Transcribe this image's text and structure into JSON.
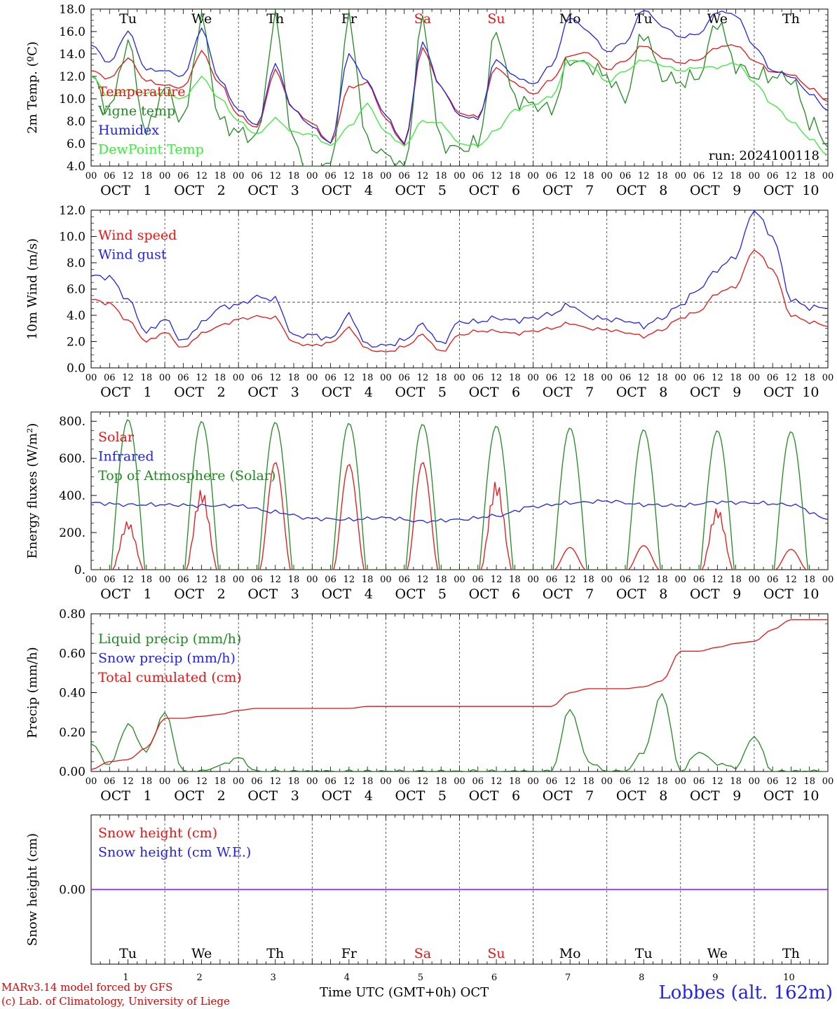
{
  "colors": {
    "red": "#ee1111",
    "darkgreen": "#1e8c1e",
    "blue": "#2222ee",
    "lightgreen": "#33ee33",
    "purple": "#8a2be2",
    "grey": "#555555"
  },
  "time_axis": {
    "n_days": 10,
    "hour_ticks": [
      "00",
      "06",
      "12",
      "18"
    ],
    "end_label": "00",
    "month": "OCT",
    "date_labels": [
      "1",
      "2",
      "3",
      "4",
      "5",
      "6",
      "7",
      "8",
      "9",
      "10"
    ],
    "weekdays": [
      "Tu",
      "We",
      "Th",
      "Fr",
      "Sa",
      "Su",
      "Mo",
      "Tu",
      "We",
      "Th"
    ],
    "weekend_color_days": [
      4,
      5
    ],
    "day_numbers": [
      "1",
      "2",
      "3",
      "4",
      "5",
      "6",
      "7",
      "8",
      "9",
      "10"
    ],
    "xlabel": "Time UTC (GMT+0h)",
    "xlabel_month": "OCT"
  },
  "footer": {
    "model": "MARv3.14 model forced by GFS",
    "copyright": "(c) Lab. of Climatology, University of Liege",
    "station": "Lobbes (alt. 162m)"
  },
  "chart_data": [
    {
      "type": "line",
      "ylabel": "2m Temp. (ºC)",
      "ylim": [
        4.0,
        18.0
      ],
      "yticks": [
        "4.0",
        "6.0",
        "8.0",
        "10.0",
        "12.0",
        "14.0",
        "16.0",
        "18.0"
      ],
      "annotation": "run: 2024100118",
      "show_weekdays": true,
      "x_hours": [
        0,
        6,
        12,
        18,
        24,
        30,
        36,
        42,
        48,
        54,
        60,
        66,
        72,
        78,
        84,
        90,
        96,
        102,
        108,
        114,
        120,
        126,
        132,
        138,
        144,
        150,
        156,
        162,
        168,
        174,
        180,
        186,
        192,
        198,
        204,
        210,
        216,
        222,
        228,
        234,
        240
      ],
      "series": [
        {
          "name": "Temperature",
          "color": "red",
          "values": [
            12.5,
            11.8,
            13.6,
            11.6,
            11.2,
            11.0,
            14.2,
            11.3,
            8.5,
            7.4,
            12.5,
            9.0,
            7.8,
            6.0,
            11.0,
            11.4,
            8.2,
            5.9,
            14.5,
            11.0,
            8.7,
            8.4,
            12.8,
            11.4,
            10.4,
            11.7,
            13.9,
            14.1,
            12.6,
            13.4,
            14.8,
            13.7,
            13.2,
            13.5,
            14.6,
            14.8,
            13.4,
            12.4,
            12.2,
            11.0,
            9.8
          ]
        },
        {
          "name": "Vigne temp",
          "color": "darkgreen",
          "values": [
            12.0,
            9.0,
            15.0,
            7.0,
            11.0,
            8.0,
            17.0,
            8.0,
            7.0,
            6.5,
            17.0,
            6.0,
            3.0,
            4.0,
            17.0,
            6.0,
            5.0,
            3.5,
            17.0,
            6.0,
            5.5,
            6.0,
            16.0,
            10.0,
            9.5,
            9.0,
            13.5,
            13.0,
            12.0,
            10.0,
            16.0,
            12.0,
            11.5,
            12.0,
            17.0,
            13.0,
            12.0,
            12.0,
            11.8,
            8.0,
            6.0
          ]
        },
        {
          "name": "Humidex",
          "color": "blue",
          "values": [
            14.8,
            13.2,
            16.0,
            12.6,
            12.5,
            12.0,
            16.2,
            11.6,
            9.0,
            7.6,
            13.0,
            9.0,
            7.5,
            6.0,
            13.9,
            11.5,
            8.5,
            6.0,
            15.0,
            11.0,
            8.5,
            8.2,
            13.5,
            12.0,
            11.3,
            13.0,
            17.3,
            16.0,
            14.2,
            15.0,
            18.0,
            16.5,
            15.5,
            15.8,
            17.8,
            17.5,
            14.7,
            12.5,
            12.0,
            10.5,
            9.0
          ]
        },
        {
          "name": "DewPoint Temp",
          "color": "lightgreen",
          "values": [
            12.0,
            10.2,
            10.8,
            10.5,
            10.5,
            10.0,
            11.9,
            10.0,
            8.0,
            6.8,
            8.2,
            7.0,
            6.8,
            5.8,
            7.5,
            9.5,
            7.0,
            5.8,
            8.0,
            7.8,
            6.0,
            5.8,
            7.2,
            9.0,
            9.5,
            10.2,
            13.5,
            13.2,
            11.5,
            12.5,
            13.5,
            13.0,
            12.5,
            12.8,
            12.8,
            13.2,
            11.5,
            9.5,
            8.0,
            6.5,
            5.0
          ]
        }
      ]
    },
    {
      "type": "line",
      "ylabel": "10m Wind (m/s)",
      "ylim": [
        0.0,
        12.0
      ],
      "yticks": [
        "0.0",
        "2.0",
        "4.0",
        "6.0",
        "8.0",
        "10.0",
        "12.0"
      ],
      "reference_line": 5.0,
      "x_hours": [
        0,
        6,
        12,
        18,
        24,
        30,
        36,
        42,
        48,
        54,
        60,
        66,
        72,
        78,
        84,
        90,
        96,
        102,
        108,
        114,
        120,
        126,
        132,
        138,
        144,
        150,
        156,
        162,
        168,
        174,
        180,
        186,
        192,
        198,
        204,
        210,
        216,
        222,
        228,
        234,
        240
      ],
      "series": [
        {
          "name": "Wind speed",
          "color": "red",
          "values": [
            5.2,
            4.9,
            3.6,
            2.0,
            2.7,
            1.5,
            2.6,
            3.2,
            3.7,
            3.9,
            3.8,
            1.9,
            1.7,
            1.9,
            3.0,
            1.4,
            1.2,
            1.6,
            2.5,
            1.2,
            2.5,
            2.8,
            2.8,
            2.6,
            2.8,
            3.0,
            3.4,
            3.0,
            2.9,
            2.7,
            2.4,
            2.9,
            3.8,
            4.3,
            5.7,
            6.2,
            9.0,
            7.5,
            4.0,
            3.5,
            3.2
          ]
        },
        {
          "name": "Wind gust",
          "color": "blue",
          "values": [
            7.0,
            6.9,
            5.2,
            2.7,
            3.7,
            2.0,
            3.4,
            4.6,
            4.8,
            5.4,
            5.2,
            2.4,
            2.5,
            2.2,
            4.0,
            1.7,
            1.7,
            2.1,
            3.3,
            1.8,
            3.5,
            3.5,
            3.8,
            3.6,
            3.8,
            4.1,
            4.8,
            3.9,
            3.7,
            3.6,
            3.2,
            3.8,
            4.8,
            6.0,
            7.5,
            8.5,
            12.0,
            10.0,
            5.2,
            4.6,
            4.6
          ]
        }
      ]
    },
    {
      "type": "line",
      "ylabel": "Energy fluxes (W/m²)",
      "ylim": [
        0,
        850
      ],
      "yticks": [
        "0.",
        "200.",
        "400.",
        "600.",
        "800."
      ],
      "ytick_values": [
        0,
        200,
        400,
        600,
        800
      ],
      "series": [
        {
          "name": "Solar",
          "color": "red",
          "daily_peaks": [
            290,
            480,
            580,
            570,
            580,
            530,
            120,
            130,
            370,
            110
          ]
        },
        {
          "name": "Infrared",
          "color": "blue",
          "x_hours": [
            0,
            12,
            24,
            36,
            48,
            60,
            72,
            84,
            96,
            108,
            120,
            132,
            144,
            156,
            168,
            180,
            192,
            204,
            216,
            228,
            240
          ],
          "values": [
            360,
            350,
            350,
            345,
            345,
            310,
            275,
            270,
            280,
            260,
            270,
            290,
            340,
            360,
            370,
            350,
            345,
            365,
            360,
            350,
            275
          ]
        },
        {
          "name": "Top of Atmosphere (Solar)",
          "color": "darkgreen",
          "daily_peaks": [
            810,
            800,
            795,
            790,
            785,
            775,
            765,
            755,
            750,
            745
          ]
        }
      ]
    },
    {
      "type": "line",
      "ylabel": "Precip (mm/h)",
      "ylim": [
        0.0,
        0.8
      ],
      "yticks": [
        "0.00",
        "0.20",
        "0.40",
        "0.60",
        "0.80"
      ],
      "x_hours": [
        0,
        6,
        12,
        18,
        24,
        30,
        36,
        42,
        48,
        54,
        60,
        66,
        72,
        78,
        84,
        90,
        96,
        102,
        108,
        114,
        120,
        126,
        132,
        138,
        144,
        150,
        156,
        162,
        168,
        174,
        180,
        186,
        192,
        198,
        204,
        210,
        216,
        222,
        228,
        234,
        240
      ],
      "series": [
        {
          "name": "Liquid precip (mm/h)",
          "color": "darkgreen",
          "values": [
            0.14,
            0.03,
            0.24,
            0.1,
            0.3,
            0.0,
            0.0,
            0.03,
            0.07,
            0.0,
            0.0,
            0.0,
            0.0,
            0.0,
            0.0,
            0.0,
            0.0,
            0.0,
            0.0,
            0.0,
            0.0,
            0.0,
            0.0,
            0.0,
            0.0,
            0.0,
            0.32,
            0.05,
            0.0,
            0.0,
            0.1,
            0.4,
            0.0,
            0.1,
            0.04,
            0.02,
            0.18,
            0.0,
            0.0,
            0.0,
            0.0
          ]
        },
        {
          "name": "Snow precip (mm/h)",
          "color": "blue",
          "values": []
        },
        {
          "name": "Total cumulated (cm)",
          "color": "red",
          "values": [
            0.01,
            0.05,
            0.06,
            0.12,
            0.27,
            0.27,
            0.28,
            0.29,
            0.31,
            0.32,
            0.32,
            0.32,
            0.32,
            0.32,
            0.32,
            0.33,
            0.33,
            0.33,
            0.33,
            0.33,
            0.33,
            0.33,
            0.33,
            0.33,
            0.33,
            0.33,
            0.4,
            0.42,
            0.42,
            0.42,
            0.43,
            0.46,
            0.61,
            0.61,
            0.63,
            0.65,
            0.66,
            0.72,
            0.77,
            0.77,
            0.77
          ]
        }
      ]
    },
    {
      "type": "line",
      "ylabel": "Snow height (cm)",
      "ylim": [
        -1.0,
        1.0
      ],
      "yticks": [
        "0.00"
      ],
      "ytick_values": [
        0
      ],
      "show_bottom_weekdays": true,
      "series": [
        {
          "name": "Snow height (cm)",
          "color": "red",
          "values": [
            0.0,
            0.0
          ]
        },
        {
          "name": "Snow height (cm W.E.)",
          "color": "blue",
          "values": [
            0.0,
            0.0
          ]
        }
      ]
    }
  ]
}
